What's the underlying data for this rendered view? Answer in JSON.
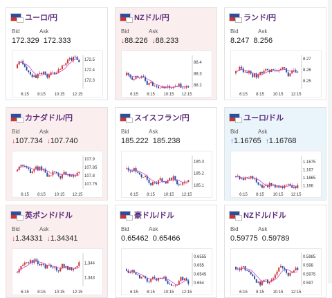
{
  "cards": [
    {
      "name": "eur-jpy",
      "pair": "ユーロ/円",
      "bid_label": "Bid",
      "ask_label": "Ask",
      "bid": "172.329",
      "ask": "172.333",
      "trend": "none",
      "chart_data": {
        "type": "candlestick",
        "yticks": [
          "172.5",
          "172.4",
          "172.3"
        ],
        "xticks": [
          "6:15",
          "8:15",
          "10:15",
          "12:15"
        ],
        "ylim": [
          172.22,
          172.54
        ]
      }
    },
    {
      "name": "nzd-jpy",
      "pair": "NZドル/円",
      "bid_label": "Bid",
      "ask_label": "Ask",
      "bid": "88.226",
      "ask": "88.233",
      "trend": "down",
      "chart_data": {
        "type": "candlestick",
        "yticks": [
          "88.4",
          "88.3",
          "88.2"
        ],
        "xticks": [
          "6:15",
          "8:15",
          "10:15",
          "12:15"
        ],
        "ylim": [
          88.17,
          88.46
        ]
      }
    },
    {
      "name": "zar-jpy",
      "pair": "ランド/円",
      "bid_label": "Bid",
      "ask_label": "Ask",
      "bid": "8.247",
      "ask": "8.256",
      "trend": "none",
      "chart_data": {
        "type": "candlestick",
        "yticks": [
          "8.27",
          "8.26",
          "8.25"
        ],
        "xticks": [
          "6:15",
          "8:15",
          "10:15",
          "12:15"
        ],
        "ylim": [
          8.243,
          8.273
        ]
      }
    },
    {
      "name": "cad-jpy",
      "pair": "カナダドル/円",
      "bid_label": "Bid",
      "ask_label": "Ask",
      "bid": "107.734",
      "ask": "107.740",
      "trend": "down",
      "chart_data": {
        "type": "candlestick",
        "yticks": [
          "107.9",
          "107.85",
          "107.8",
          "107.75"
        ],
        "xticks": [
          "6:15",
          "8:15",
          "10:15",
          "12:15"
        ],
        "ylim": [
          107.72,
          107.92
        ]
      }
    },
    {
      "name": "chf-jpy",
      "pair": "スイスフラン/円",
      "bid_label": "Bid",
      "ask_label": "Ask",
      "bid": "185.222",
      "ask": "185.238",
      "trend": "none",
      "chart_data": {
        "type": "candlestick",
        "yticks": [
          "185.3",
          "185.2",
          "185.1"
        ],
        "xticks": [
          "6:15",
          "8:15",
          "10:15",
          "12:15"
        ],
        "ylim": [
          185.07,
          185.35
        ]
      }
    },
    {
      "name": "eur-usd",
      "pair": "ユーロ/ドル",
      "bid_label": "Bid",
      "ask_label": "Ask",
      "bid": "1.16765",
      "ask": "1.16768",
      "trend": "up",
      "chart_data": {
        "type": "candlestick",
        "yticks": [
          "1.1675",
          "1.167",
          "1.1665",
          "1.166"
        ],
        "xticks": [
          "6:15",
          "8:15",
          "10:15",
          "12:15"
        ],
        "ylim": [
          1.1658,
          1.1679
        ]
      }
    },
    {
      "name": "gbp-usd",
      "pair": "英ポンド/ドル",
      "bid_label": "Bid",
      "ask_label": "Ask",
      "bid": "1.34331",
      "ask": "1.34341",
      "trend": "down",
      "chart_data": {
        "type": "candlestick",
        "yticks": [
          "1.344",
          "1.343"
        ],
        "xticks": [
          "6:15",
          "8:15",
          "10:15",
          "12:15"
        ],
        "ylim": [
          1.3424,
          1.3447
        ]
      }
    },
    {
      "name": "aud-usd",
      "pair": "豪ドル/ドル",
      "bid_label": "Bid",
      "ask_label": "Ask",
      "bid": "0.65462",
      "ask": "0.65466",
      "trend": "none",
      "chart_data": {
        "type": "candlestick",
        "yticks": [
          "0.6555",
          "0.655",
          "0.6545",
          "0.654"
        ],
        "xticks": [
          "6:15",
          "8:15",
          "10:15",
          "12:15"
        ],
        "ylim": [
          0.6538,
          0.6557
        ]
      }
    },
    {
      "name": "nzd-usd",
      "pair": "NZドル/ドル",
      "bid_label": "Bid",
      "ask_label": "Ask",
      "bid": "0.59775",
      "ask": "0.59789",
      "trend": "none",
      "chart_data": {
        "type": "candlestick",
        "yticks": [
          "0.5985",
          "0.598",
          "0.5975",
          "0.597"
        ],
        "xticks": [
          "6:15",
          "8:15",
          "10:15",
          "12:15"
        ],
        "ylim": [
          0.5968,
          0.5987
        ]
      }
    }
  ],
  "colors": {
    "bull": "#d0362e",
    "bear": "#2a4ea0",
    "ma": "#cc44cc",
    "down_bg": "#fbeeee",
    "up_bg": "#eaf4fb",
    "title": "#5a2c7a"
  }
}
